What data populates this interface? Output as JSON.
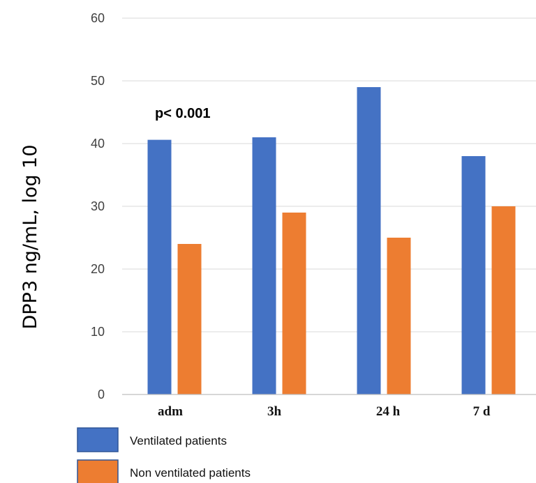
{
  "chart_data": {
    "type": "bar",
    "title": "",
    "xlabel": "",
    "ylabel": "DPP3 ng/mL, log 10",
    "categories": [
      "adm",
      "3h",
      "24 h",
      "7 d"
    ],
    "series": [
      {
        "name": "Ventilated patients",
        "values": [
          40.6,
          41,
          49,
          38
        ],
        "color": "#4472C4"
      },
      {
        "name": "Non ventilated patients",
        "values": [
          24,
          29,
          25,
          30
        ],
        "color": "#ED7D31"
      }
    ],
    "ylim": [
      0,
      60
    ],
    "yticks": [
      0,
      10,
      20,
      30,
      40,
      50,
      60
    ],
    "grid": true,
    "legend_position": "bottom-left",
    "annotations": [
      {
        "text": "p< 0.001"
      }
    ]
  }
}
